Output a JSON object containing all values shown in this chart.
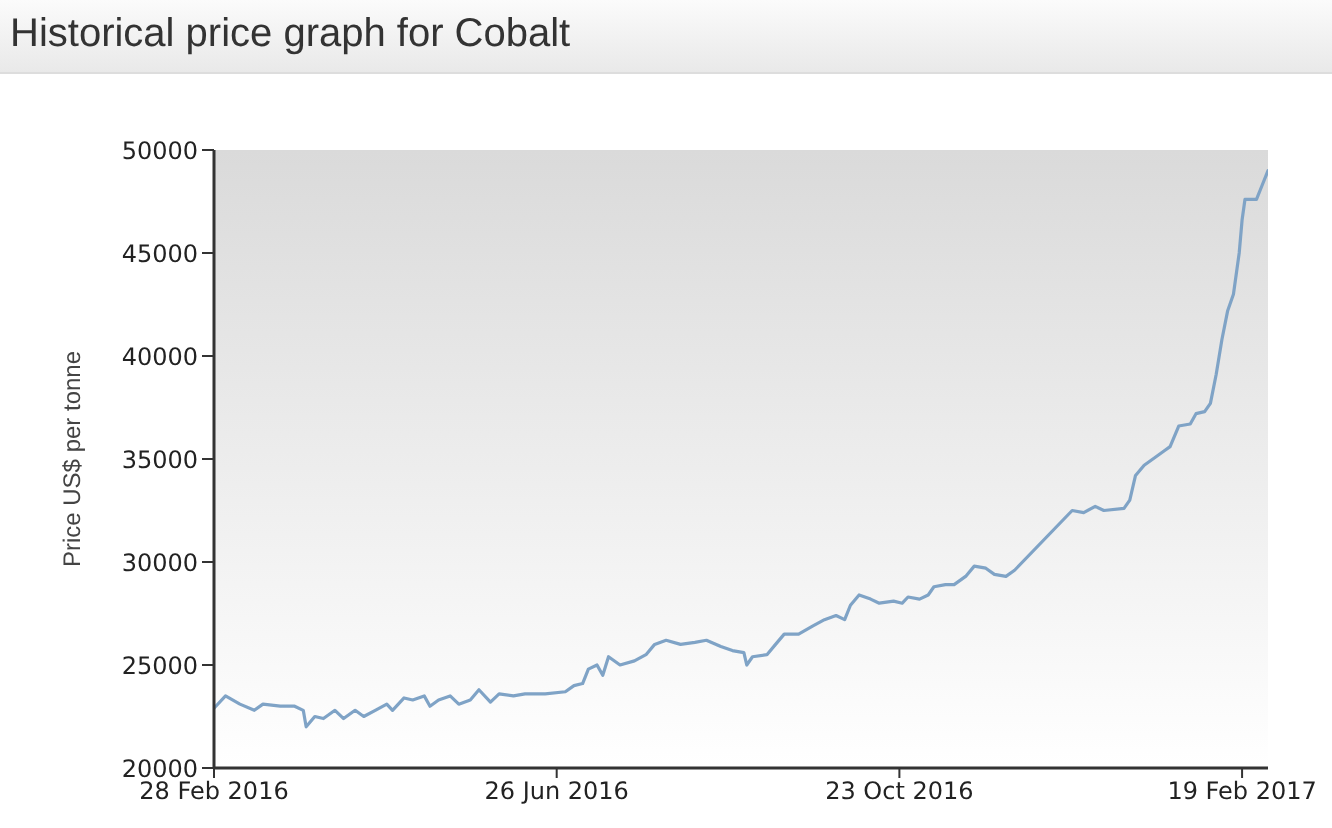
{
  "chart_data": {
    "type": "line",
    "title": "Historical price graph for Cobalt",
    "ylabel": "Price US$ per tonne",
    "x": [
      "2016-02-28",
      "2016-03-03",
      "2016-03-08",
      "2016-03-13",
      "2016-03-16",
      "2016-03-22",
      "2016-03-27",
      "2016-03-30",
      "2016-03-31",
      "2016-04-03",
      "2016-04-06",
      "2016-04-10",
      "2016-04-13",
      "2016-04-17",
      "2016-04-20",
      "2016-04-24",
      "2016-04-28",
      "2016-04-30",
      "2016-05-04",
      "2016-05-07",
      "2016-05-11",
      "2016-05-13",
      "2016-05-16",
      "2016-05-20",
      "2016-05-23",
      "2016-05-27",
      "2016-05-30",
      "2016-06-03",
      "2016-06-06",
      "2016-06-11",
      "2016-06-15",
      "2016-06-22",
      "2016-06-29",
      "2016-07-02",
      "2016-07-05",
      "2016-07-07",
      "2016-07-10",
      "2016-07-12",
      "2016-07-14",
      "2016-07-18",
      "2016-07-23",
      "2016-07-27",
      "2016-07-30",
      "2016-08-03",
      "2016-08-08",
      "2016-08-13",
      "2016-08-17",
      "2016-08-22",
      "2016-08-26",
      "2016-08-30",
      "2016-08-31",
      "2016-09-02",
      "2016-09-07",
      "2016-09-10",
      "2016-09-13",
      "2016-09-18",
      "2016-09-23",
      "2016-09-27",
      "2016-10-01",
      "2016-10-04",
      "2016-10-06",
      "2016-10-09",
      "2016-10-13",
      "2016-10-16",
      "2016-10-21",
      "2016-10-24",
      "2016-10-26",
      "2016-10-30",
      "2016-11-02",
      "2016-11-04",
      "2016-11-08",
      "2016-11-11",
      "2016-11-15",
      "2016-11-18",
      "2016-11-22",
      "2016-11-25",
      "2016-11-29",
      "2016-12-02",
      "2016-12-22",
      "2016-12-26",
      "2016-12-30",
      "2017-01-02",
      "2017-01-09",
      "2017-01-11",
      "2017-01-13",
      "2017-01-16",
      "2017-01-20",
      "2017-01-23",
      "2017-01-25",
      "2017-01-28",
      "2017-02-01",
      "2017-02-03",
      "2017-02-06",
      "2017-02-08",
      "2017-02-10",
      "2017-02-12",
      "2017-02-14",
      "2017-02-16",
      "2017-02-18",
      "2017-02-19",
      "2017-02-20",
      "2017-02-22",
      "2017-02-24",
      "2017-02-26",
      "2017-02-28"
    ],
    "values": [
      22900,
      23500,
      23100,
      22800,
      23100,
      23000,
      23000,
      22800,
      22000,
      22500,
      22400,
      22800,
      22400,
      22800,
      22500,
      22800,
      23100,
      22800,
      23400,
      23300,
      23500,
      23000,
      23300,
      23500,
      23100,
      23300,
      23800,
      23200,
      23600,
      23500,
      23600,
      23600,
      23700,
      24000,
      24100,
      24800,
      25000,
      24500,
      25400,
      25000,
      25200,
      25500,
      26000,
      26200,
      26000,
      26100,
      26200,
      25900,
      25700,
      25600,
      25000,
      25400,
      25500,
      26000,
      26500,
      26500,
      26900,
      27200,
      27400,
      27200,
      27900,
      28400,
      28200,
      28000,
      28100,
      28000,
      28300,
      28200,
      28400,
      28800,
      28900,
      28900,
      29300,
      29800,
      29700,
      29400,
      29300,
      29600,
      32500,
      32400,
      32700,
      32500,
      32600,
      33000,
      34200,
      34700,
      35100,
      35400,
      35600,
      36600,
      36700,
      37200,
      37300,
      37700,
      39100,
      40800,
      42200,
      43000,
      45000,
      46600,
      47600,
      47600,
      47600,
      48300,
      49000
    ],
    "color": "#7fa3c6",
    "xlim": [
      "2016-02-28",
      "2017-02-28"
    ],
    "xticks": [
      {
        "value": "2016-02-28",
        "label": "28 Feb 2016"
      },
      {
        "value": "2016-06-26",
        "label": "26 Jun 2016"
      },
      {
        "value": "2016-10-23",
        "label": "23 Oct 2016"
      },
      {
        "value": "2017-02-19",
        "label": "19 Feb 2017"
      }
    ],
    "ylim": [
      20000,
      50000
    ],
    "yticks": [
      20000,
      25000,
      30000,
      35000,
      40000,
      45000,
      50000
    ]
  }
}
